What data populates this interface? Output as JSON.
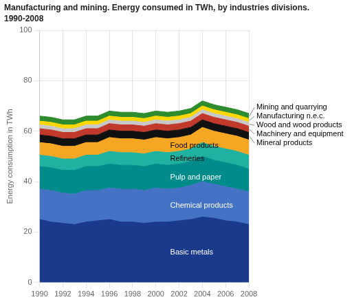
{
  "chart_data": {
    "type": "area",
    "stacked": true,
    "title": "Manufacturing and mining. Energy consumed in TWh, by industries divisions.",
    "subtitle": "1990-2008",
    "ylabel": "Energy consumption in TWh",
    "x": [
      1990,
      1991,
      1992,
      1993,
      1994,
      1995,
      1996,
      1997,
      1998,
      1999,
      2000,
      2001,
      2002,
      2003,
      2004,
      2005,
      2006,
      2007,
      2008
    ],
    "series": [
      {
        "name": "Basic metals",
        "color": "#1A3A8C",
        "values": [
          25,
          24,
          23.5,
          23,
          24,
          24.5,
          25,
          24,
          24,
          23.5,
          24,
          24,
          24.5,
          25,
          26,
          25.5,
          24.5,
          24,
          23
        ]
      },
      {
        "name": "Chemical products",
        "color": "#4472C4",
        "values": [
          12,
          12.5,
          12,
          12,
          12.5,
          12,
          12.5,
          13,
          13,
          13,
          13.5,
          13,
          13,
          13.5,
          14,
          13.5,
          13.5,
          13,
          13
        ]
      },
      {
        "name": "Pulp and paper",
        "color": "#008B8B",
        "values": [
          9,
          9,
          9,
          9.5,
          9.5,
          9.5,
          9.5,
          9.5,
          9.5,
          9.5,
          9.5,
          9.5,
          9.5,
          9.5,
          10,
          9.5,
          9.5,
          9.5,
          9
        ]
      },
      {
        "name": "Refineries",
        "color": "#20B2A0",
        "values": [
          4.5,
          4.5,
          4.5,
          4.5,
          4.5,
          4.5,
          5,
          5,
          5,
          5,
          5,
          5,
          5,
          5,
          5.5,
          5.5,
          5.5,
          5.5,
          5.5
        ]
      },
      {
        "name": "Food products",
        "color": "#F5A623",
        "values": [
          5,
          5,
          5,
          5,
          5,
          5,
          5.5,
          5.5,
          5.5,
          5.5,
          5.5,
          5.5,
          5.5,
          5.5,
          6,
          6,
          6,
          6,
          6
        ]
      },
      {
        "name": "Mineral products",
        "color": "#111111",
        "values": [
          3,
          3,
          3,
          3,
          3,
          3,
          3,
          3,
          3,
          3,
          3,
          3,
          3,
          3,
          3,
          3,
          3,
          3,
          3
        ]
      },
      {
        "name": "Machinery and equipment",
        "color": "#C0392B",
        "values": [
          2.5,
          2.5,
          2.5,
          2.5,
          2.5,
          2.5,
          2.5,
          2.5,
          2.5,
          2.5,
          2.5,
          2.5,
          2.5,
          2.5,
          2.5,
          2.5,
          2.5,
          2.5,
          2.5
        ]
      },
      {
        "name": "Wood and wood products",
        "color": "#C8C8C8",
        "values": [
          1.5,
          1.5,
          1.5,
          1.5,
          1.5,
          1.5,
          1.5,
          1.5,
          1.5,
          1.5,
          1.5,
          1.5,
          1.5,
          1.5,
          1.5,
          1.5,
          1.5,
          1.5,
          1.5
        ]
      },
      {
        "name": "Manufacturing n.e.c.",
        "color": "#FFD700",
        "values": [
          1.5,
          1.5,
          1.5,
          1.5,
          1.5,
          1.5,
          1.5,
          1.5,
          1.5,
          1.5,
          1.5,
          1.5,
          1.5,
          1.5,
          1.5,
          1.5,
          1.5,
          1.5,
          1.5
        ]
      },
      {
        "name": "Mining and quarrying",
        "color": "#2E8B2E",
        "values": [
          2,
          2,
          2,
          2,
          2,
          2,
          2,
          2,
          2,
          2,
          2,
          2,
          2,
          2,
          2,
          2,
          2,
          2,
          2
        ]
      }
    ],
    "xlim": [
      1990,
      2008
    ],
    "xticks": [
      1990,
      1992,
      1994,
      1996,
      1998,
      2000,
      2002,
      2004,
      2006,
      2008
    ],
    "ylim": [
      0,
      100
    ],
    "yticks": [
      0,
      20,
      40,
      60,
      80,
      100
    ],
    "grid": true,
    "annotations": [
      {
        "text": "Basic metals",
        "x": 2001
      },
      {
        "text": "Chemical products",
        "x": 2001
      },
      {
        "text": "Pulp and paper",
        "x": 2001
      },
      {
        "text": "Refineries",
        "x": 2001
      },
      {
        "text": "Food products",
        "x": 2001
      },
      {
        "text": "Mining and quarrying",
        "x": 2008
      },
      {
        "text": "Manufacturing n.e.c.",
        "x": 2008
      },
      {
        "text": "Wood and wood products",
        "x": 2008
      },
      {
        "text": "Machinery and equipment",
        "x": 2008
      },
      {
        "text": "Mineral products",
        "x": 2008
      }
    ]
  }
}
